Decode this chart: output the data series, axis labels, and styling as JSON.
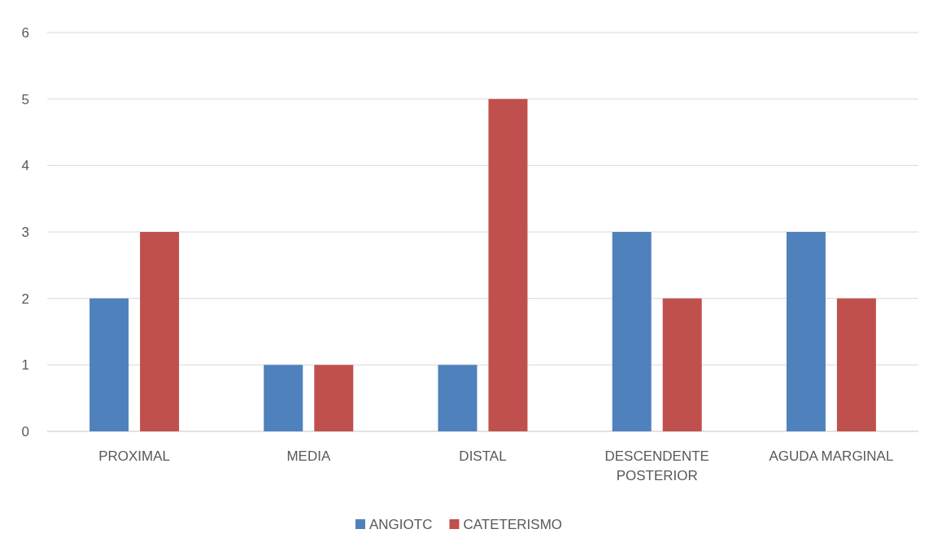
{
  "chart_data": {
    "type": "bar",
    "categories": [
      "PROXIMAL",
      "MEDIA",
      "DISTAL",
      "DESCENDENTE POSTERIOR",
      "AGUDA MARGINAL"
    ],
    "series": [
      {
        "name": "ANGIOTC",
        "color": "#4f81bd",
        "values": [
          2,
          1,
          1,
          3,
          3
        ]
      },
      {
        "name": "CATETERISMO",
        "color": "#c0504d",
        "values": [
          3,
          1,
          5,
          2,
          2
        ]
      }
    ],
    "ylim": [
      0,
      6
    ],
    "yticks": [
      0,
      1,
      2,
      3,
      4,
      5,
      6
    ],
    "grid": "y",
    "legend": "bottom"
  }
}
